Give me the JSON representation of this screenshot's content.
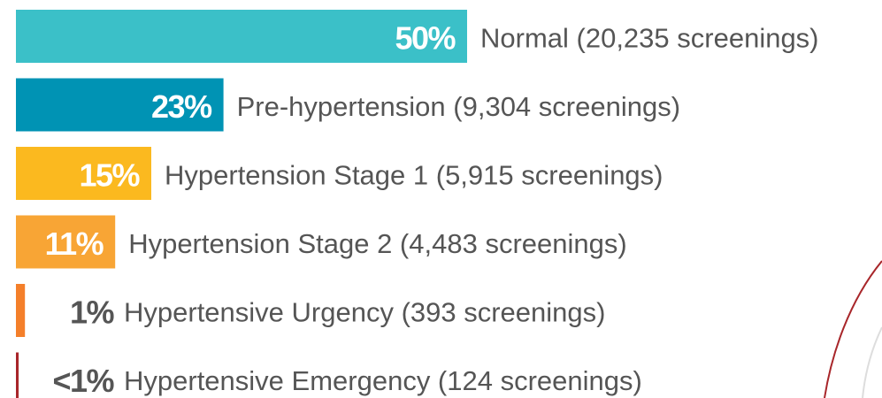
{
  "chart_data": {
    "type": "bar",
    "orientation": "horizontal",
    "categories": [
      "Normal (20,235 screenings)",
      "Pre-hypertension (9,304 screenings)",
      "Hypertension Stage 1 (5,915 screenings)",
      "Hypertension Stage 2 (4,483 screenings)",
      "Hypertensive Urgency (393 screenings)",
      "Hypertensive Emergency (124 screenings)"
    ],
    "values": [
      50,
      23,
      15,
      11,
      1,
      0.3
    ],
    "value_labels": [
      "50%",
      "23%",
      "15%",
      "11%",
      "1%",
      "<1%"
    ],
    "colors": [
      "#3bc0c8",
      "#0093b4",
      "#fbb91f",
      "#f8a535",
      "#f47f2a",
      "#a8262a"
    ]
  }
}
